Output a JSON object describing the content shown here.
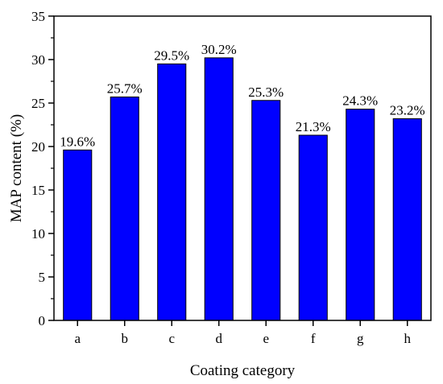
{
  "chart_data": {
    "type": "bar",
    "categories": [
      "a",
      "b",
      "c",
      "d",
      "e",
      "f",
      "g",
      "h"
    ],
    "values": [
      19.6,
      25.7,
      29.5,
      30.2,
      25.3,
      21.3,
      24.3,
      23.2
    ],
    "data_labels": [
      "19.6%",
      "25.7%",
      "29.5%",
      "30.2%",
      "25.3%",
      "21.3%",
      "24.3%",
      "23.2%"
    ],
    "title": "",
    "xlabel": "Coating category",
    "ylabel": "MAP content (%)",
    "ylim": [
      0,
      35
    ],
    "yticks": [
      0,
      5,
      10,
      15,
      20,
      25,
      30,
      35
    ],
    "grid": false,
    "bar_color": "#0000ff",
    "bar_edge_color": "#000000"
  }
}
